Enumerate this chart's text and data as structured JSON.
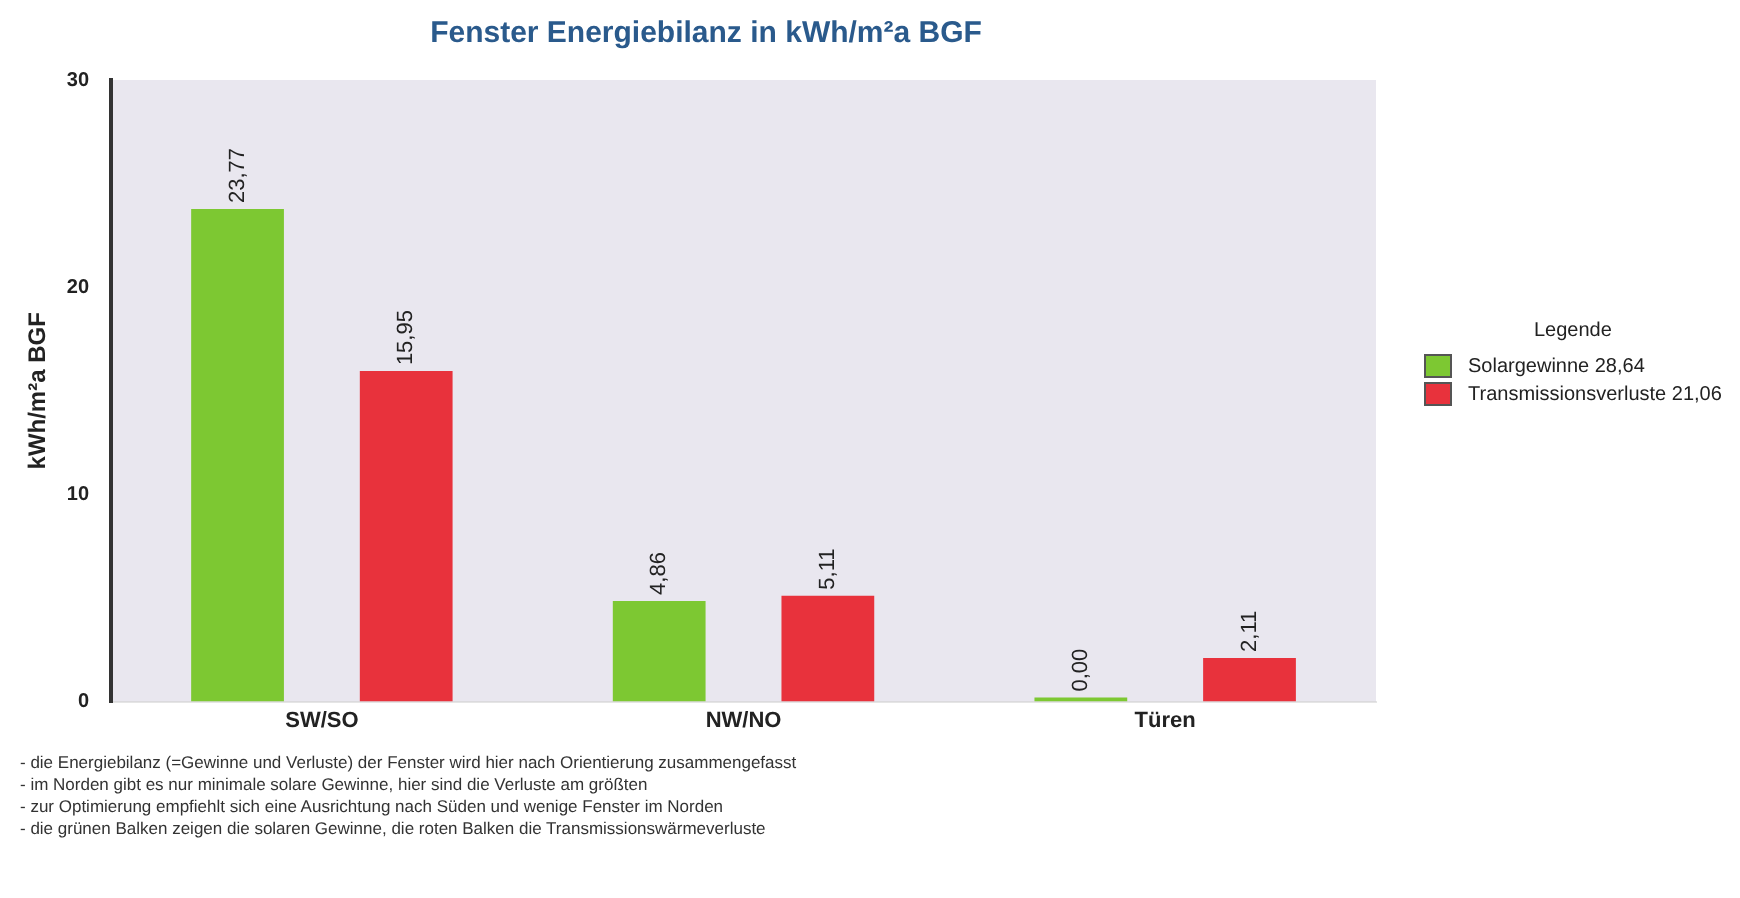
{
  "chart_data": {
    "type": "bar",
    "title": "Fenster Energiebilanz in kWh/m²a BGF",
    "ylabel": "kWh/m²a BGF",
    "legend_title": "Legende",
    "categories": [
      "SW/SO",
      "NW/NO",
      "Türen"
    ],
    "series": [
      {
        "name": "Solargewinne 28,64",
        "color": "#7dc832",
        "values": [
          23.77,
          4.86,
          0
        ],
        "value_labels": [
          "23,77",
          "4,86",
          "0,00"
        ]
      },
      {
        "name": "Transmissionsverluste 21,06",
        "color": "#e8323c",
        "values": [
          15.95,
          5.11,
          2.11
        ],
        "value_labels": [
          "15,95",
          "5,11",
          "2,11"
        ]
      }
    ],
    "ylim": [
      0,
      30
    ],
    "yticks": [
      0,
      10,
      20,
      30
    ],
    "grid": false,
    "legend": "right",
    "annotations": [
      "- die Energiebilanz (=Gewinne und Verluste) der Fenster wird hier nach Orientierung zusammengefasst",
      "- im Norden gibt es nur minimale solare Gewinne, hier sind die Verluste am größten",
      "- zur Optimierung empfiehlt sich eine Ausrichtung nach Süden und wenige Fenster im Norden",
      "- die grünen Balken zeigen die solaren Gewinne, die roten Balken die Transmissionswärmeverluste"
    ]
  }
}
